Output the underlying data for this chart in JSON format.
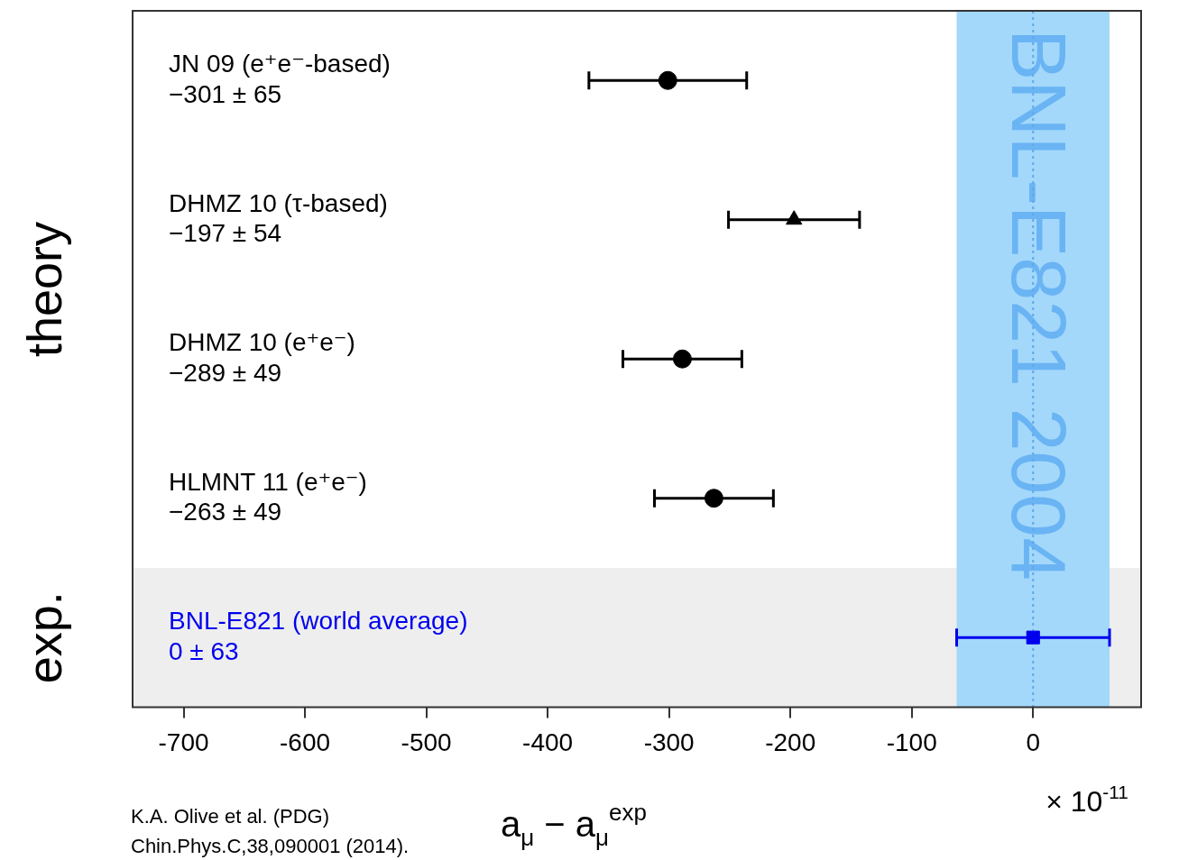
{
  "chart_data": {
    "type": "scatter",
    "orientation": "horizontal",
    "categories": [
      "JN 09 (e⁺e⁻-based)\n−301 ± 65",
      "DHMZ 10 (τ-based)\n−197 ± 54",
      "DHMZ 10 (e⁺e⁻)\n−289 ± 49",
      "HLMNT 11 (e⁺e⁻)\n−263 ± 49",
      "BNL-E821 (world average)\n0 ± 63"
    ],
    "series": [
      {
        "color": "#000000",
        "marker": "circle",
        "values": [
          -301,
          null,
          -289,
          -263,
          null
        ],
        "errors": [
          65,
          null,
          49,
          49,
          null
        ]
      },
      {
        "color": "#000000",
        "marker": "triangle",
        "values": [
          null,
          -197,
          null,
          null,
          null
        ],
        "errors": [
          null,
          54,
          null,
          null,
          null
        ]
      },
      {
        "color": "#0000ee",
        "marker": "square",
        "values": [
          null,
          null,
          null,
          null,
          0
        ],
        "errors": [
          null,
          null,
          null,
          null,
          63
        ]
      }
    ],
    "xlim": [
      -742,
      89
    ],
    "xticks": [
      -700,
      -600,
      -500,
      -400,
      -300,
      -200,
      -100,
      0
    ],
    "xlabel": "a$_{μ}$ − a$_{μ}$$^{exp}$",
    "bands": [
      {
        "axis": "y",
        "from": "BNL-E821 (world average)\n0 ± 63",
        "to": "BNL-E821 (world average)\n0 ± 63",
        "color": "#eeeeee"
      },
      {
        "axis": "x",
        "from": -63,
        "to": 63,
        "label": "BNL-E821 2004",
        "color": "#a3d8fb"
      }
    ],
    "ref_lines": [
      {
        "axis": "x",
        "value": 0,
        "color": "#5fa8ea",
        "line_style": "dotted"
      }
    ],
    "annotations": [
      "theory",
      "exp.",
      "× 10$^{-11}$",
      "K.A. Olive et al. (PDG)",
      "Chin.Phys.C,38,090001 (2014)."
    ],
    "grid": false
  }
}
